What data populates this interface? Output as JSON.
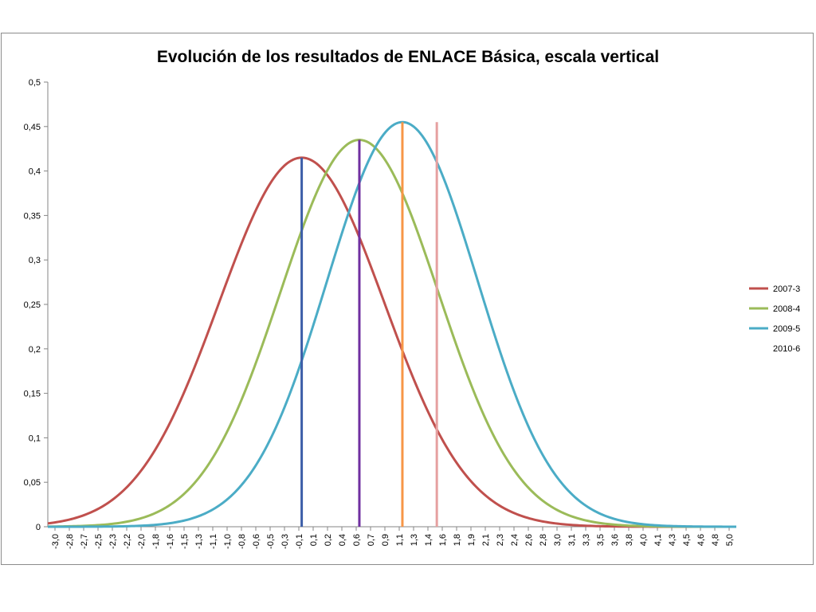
{
  "chart_data": {
    "type": "line",
    "title": "Evolución de los resultados de ENLACE Básica, escala vertical",
    "xlabel": "",
    "ylabel": "",
    "xlim": [
      -3.0,
      5.0
    ],
    "ylim": [
      0,
      0.5
    ],
    "y_ticks": [
      "0",
      "0,05",
      "0,1",
      "0,15",
      "0,2",
      "0,25",
      "0,3",
      "0,35",
      "0,4",
      "0,45",
      "0,5"
    ],
    "x_tick_labels": [
      "-3,0",
      "-2,8",
      "-2,7",
      "-2,5",
      "-2,3",
      "-2,2",
      "-2,0",
      "-1,8",
      "-1,6",
      "-1,5",
      "-1,3",
      "-1,1",
      "-1,0",
      "-0,8",
      "-0,6",
      "-0,5",
      "-0,3",
      "-0,1",
      "0,1",
      "0,2",
      "0,4",
      "0,6",
      "0,7",
      "0,9",
      "1,1",
      "1,3",
      "1,4",
      "1,6",
      "1,8",
      "1,9",
      "2,1",
      "2,3",
      "2,4",
      "2,6",
      "2,8",
      "3,0",
      "3,1",
      "3,3",
      "3,5",
      "3,6",
      "3,8",
      "4,0",
      "4,1",
      "4,3",
      "4,5",
      "4,6",
      "4,8",
      "5,0"
    ],
    "grid": false,
    "legend_position": "right",
    "series": [
      {
        "name": "2007-3",
        "color": "#c0504d",
        "mean": -0.05,
        "peak": 0.415,
        "marker_x": -0.05,
        "marker_color": "#3c5ea8"
      },
      {
        "name": "2008-4",
        "color": "#9bbb59",
        "mean": 0.62,
        "peak": 0.435,
        "marker_x": 0.62,
        "marker_color": "#7030a0"
      },
      {
        "name": "2009-5",
        "color": "#4bacc6",
        "mean": 1.12,
        "peak": 0.455,
        "marker_x": 1.12,
        "marker_color": "#f79646"
      },
      {
        "name": "2010-6",
        "color": "",
        "mean": null,
        "peak": 0.455,
        "marker_x": 1.52,
        "marker_color": "#e6a0a0"
      }
    ]
  }
}
